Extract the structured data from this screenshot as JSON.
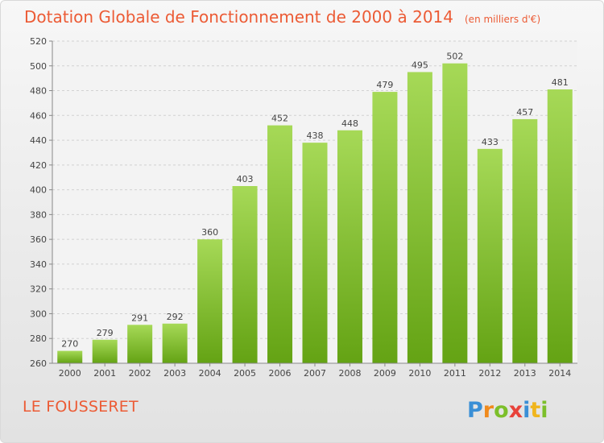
{
  "page": {
    "title": "Dotation Globale de Fonctionnement de 2000 à 2014",
    "title_unit": "(en milliers d'€)",
    "commune": "LE FOUSSERET",
    "logo_text": "Proxiti"
  },
  "colors": {
    "accent": "#ec5b35",
    "bar_light": "#a6d957",
    "bar_dark": "#64a314",
    "grid": "#d2d2d2",
    "axis_text": "#444444"
  },
  "chart_data": {
    "type": "bar",
    "title": "Dotation Globale de Fonctionnement de 2000 à 2014",
    "subtitle": "(en milliers d'€)",
    "xlabel": "",
    "ylabel": "",
    "categories": [
      "2000",
      "2001",
      "2002",
      "2003",
      "2004",
      "2005",
      "2006",
      "2007",
      "2008",
      "2009",
      "2010",
      "2011",
      "2012",
      "2013",
      "2014"
    ],
    "values": [
      270,
      279,
      291,
      292,
      360,
      403,
      452,
      438,
      448,
      479,
      495,
      502,
      433,
      457,
      481
    ],
    "ylim": [
      260,
      520
    ],
    "yticks": [
      260,
      280,
      300,
      320,
      340,
      360,
      380,
      400,
      420,
      440,
      460,
      480,
      500,
      520
    ],
    "grid": true,
    "legend": "none"
  }
}
